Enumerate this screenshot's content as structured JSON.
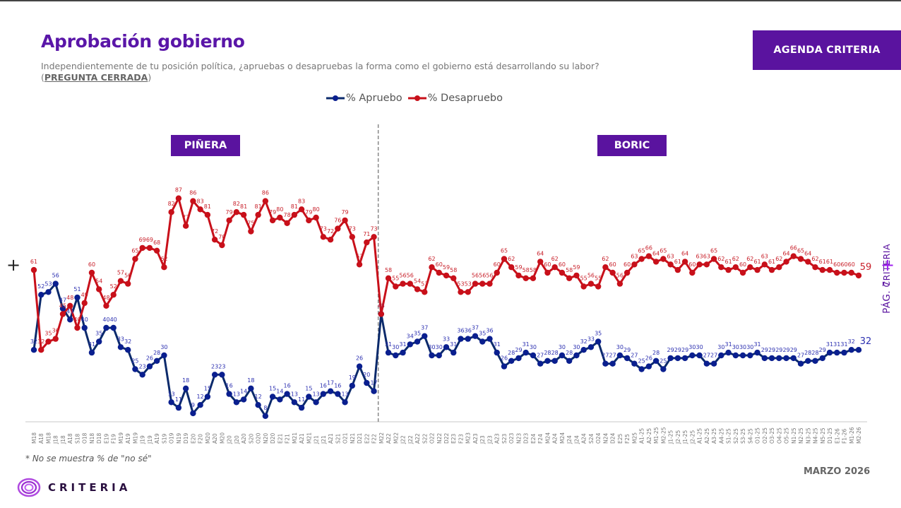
{
  "header": {
    "title": "Aprobación gobierno",
    "subtitle": "Independientemente de tu posición política, ¿apruebas o desapruebas la forma como el gobierno está desarrollando su labor?",
    "subtitle_tag_open": "(",
    "subtitle_tag": "PREGUNTA CERRADA",
    "subtitle_tag_close": ")",
    "agenda_button": "AGENDA CRITERIA"
  },
  "side": {
    "brand": "CRITERIA",
    "page": "PÁG. 7",
    "plus": "+"
  },
  "footer": {
    "note": "* No se muestra % de \"no sé\"",
    "date": "MARZO 2026",
    "logo_text": "CRITERIA"
  },
  "colors": {
    "brand_purple": "#5a139f",
    "apruebo": "#0a1f8f",
    "apruebo_line": "#0b2a6b",
    "desapruebo": "#c8101a",
    "divider": "#888888"
  },
  "chart_data": {
    "type": "line",
    "title": "Aprobación gobierno",
    "xlabel": "",
    "ylabel": "",
    "ylim": [
      0,
      100
    ],
    "grid": false,
    "legend_position": "top-center",
    "legend": [
      "% Apruebo",
      "% Desapruebo"
    ],
    "periods": [
      {
        "name": "PIÑERA",
        "from": "M18",
        "to": "F22"
      },
      {
        "name": "BORIC",
        "from": "M22",
        "to": "M2-26"
      }
    ],
    "divider_after": "F22",
    "categories": [
      "M18",
      "A18",
      "M18",
      "J18",
      "J18",
      "A18",
      "S18",
      "O18",
      "N18",
      "D18",
      "E19",
      "F19",
      "M19",
      "A19",
      "M19",
      "J19",
      "J19",
      "A19",
      "S19",
      "O19",
      "N19",
      "D19",
      "E20",
      "F20",
      "M20",
      "A20",
      "M20",
      "J20",
      "J20",
      "A20",
      "S20",
      "O20",
      "N20",
      "D20",
      "E21",
      "F21",
      "M21",
      "A21",
      "M21",
      "J21",
      "J21",
      "A21",
      "S21",
      "O21",
      "N21",
      "D21",
      "E22",
      "F22",
      "M22",
      "A22",
      "M22",
      "J22",
      "J22",
      "A22",
      "S22",
      "O22",
      "N22",
      "D22",
      "E23",
      "F23",
      "M23",
      "A23",
      "J23",
      "J23",
      "A23",
      "S23",
      "O23",
      "N23",
      "D23",
      "E24",
      "F24",
      "M24",
      "A24",
      "M24",
      "J24",
      "J24",
      "A24",
      "S24",
      "O24",
      "N24",
      "D24",
      "E25",
      "F25",
      "M25",
      "A1-25",
      "A2-25",
      "M1-25",
      "M2-25",
      "J1-25",
      "J2-25",
      "J1-25",
      "J2-25",
      "A1-25",
      "A2-25",
      "A3-25",
      "A4-25",
      "S1-25",
      "S2-25",
      "S3-25",
      "S4-25",
      "O1-25",
      "O2-25",
      "O3-25",
      "O4-25",
      "O5-25",
      "N1-25",
      "N2-25",
      "N3-25",
      "N4-25",
      "N5-25",
      "D1-25",
      "E1-26",
      "F1-26",
      "M1-26",
      "M2-26"
    ],
    "series": [
      {
        "name": "% Apruebo",
        "values": [
          32,
          52,
          53,
          56,
          47,
          43,
          51,
          40,
          31,
          35,
          40,
          40,
          33,
          32,
          25,
          23,
          26,
          28,
          30,
          13,
          11,
          18,
          9,
          12,
          15,
          23,
          23,
          16,
          13,
          14,
          18,
          12,
          8,
          15,
          14,
          16,
          13,
          11,
          15,
          13,
          16,
          17,
          16,
          13,
          19,
          26,
          20,
          17,
          45,
          31,
          30,
          31,
          34,
          35,
          37,
          30,
          30,
          33,
          31,
          36,
          36,
          37,
          35,
          36,
          31,
          26,
          28,
          29,
          31,
          30,
          27,
          28,
          28,
          30,
          28,
          30,
          32,
          33,
          35,
          27,
          27,
          30,
          29,
          27,
          25,
          26,
          28,
          25,
          29,
          29,
          29,
          30,
          30,
          27,
          27,
          30,
          31,
          30,
          30,
          30,
          31,
          29,
          29,
          29,
          29,
          29,
          27,
          28,
          28,
          29,
          31,
          31,
          31,
          32,
          32
        ]
      },
      {
        "name": "% Desapruebo",
        "values": [
          61,
          32,
          35,
          36,
          45,
          48,
          40,
          49,
          60,
          54,
          48,
          52,
          57,
          56,
          65,
          69,
          69,
          68,
          62,
          82,
          87,
          77,
          86,
          83,
          81,
          72,
          70,
          79,
          82,
          81,
          75,
          81,
          86,
          79,
          80,
          78,
          81,
          83,
          79,
          80,
          73,
          72,
          76,
          79,
          73,
          63,
          71,
          73,
          45,
          58,
          55,
          56,
          56,
          54,
          53,
          62,
          60,
          59,
          58,
          53,
          53,
          56,
          56,
          56,
          60,
          65,
          62,
          59,
          58,
          58,
          64,
          60,
          62,
          60,
          58,
          59,
          55,
          56,
          55,
          62,
          60,
          56,
          60,
          63,
          65,
          66,
          64,
          65,
          63,
          61,
          64,
          60,
          63,
          63,
          65,
          62,
          61,
          62,
          60,
          62,
          61,
          63,
          61,
          62,
          64,
          66,
          65,
          64,
          62,
          61,
          61,
          60,
          60,
          60,
          59
        ]
      }
    ]
  }
}
